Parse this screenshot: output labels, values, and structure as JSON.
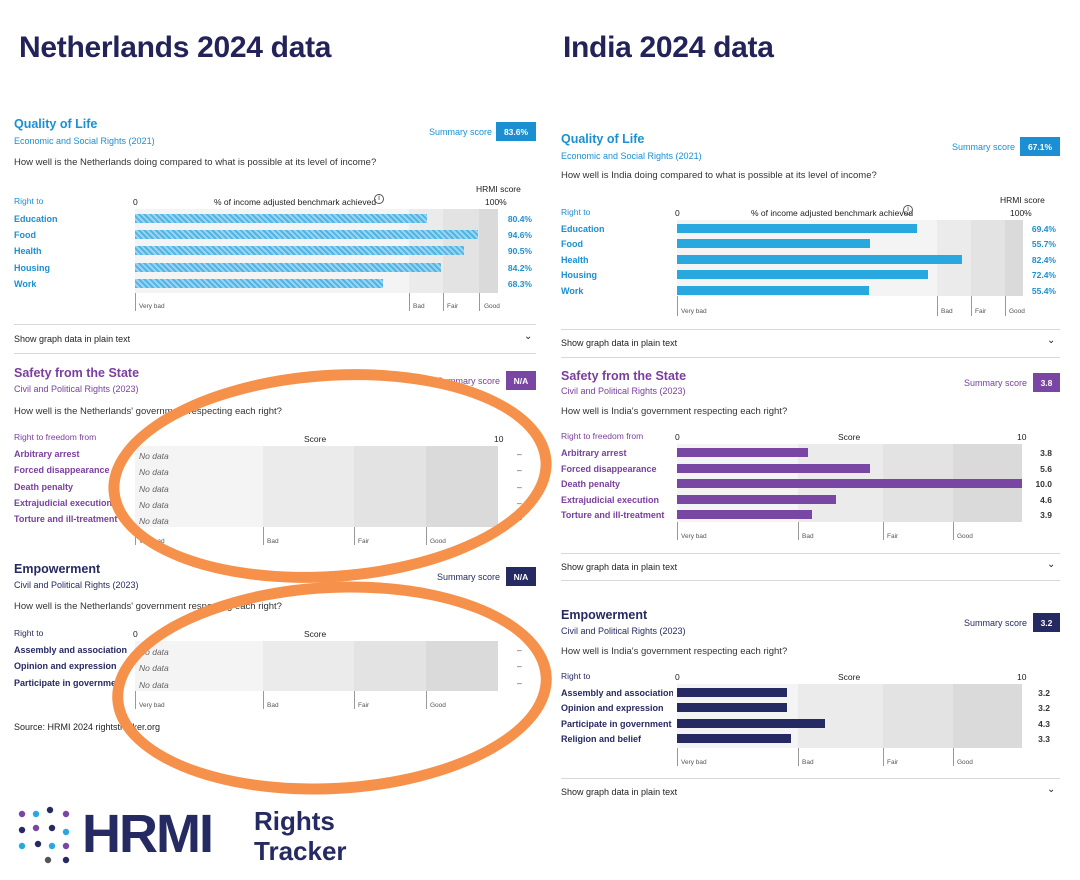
{
  "left": {
    "heading": "Netherlands 2024 data",
    "qol": {
      "title": "Quality of Life",
      "subtitle": "Economic and Social Rights (2021)",
      "summary_label": "Summary score",
      "summary_value": "83.6%",
      "question": "How well is the Netherlands doing compared to what is possible at its level of income?",
      "right_to": "Right to",
      "axis_start": "0",
      "axis_title": "% of income adjusted benchmark achieved",
      "info_icon": "info-icon",
      "axis_end": "100%",
      "hrmi_score": "HRMI score",
      "rows": [
        {
          "label": "Education",
          "display": "80.4%",
          "value": 80.4
        },
        {
          "label": "Food",
          "display": "94.6%",
          "value": 94.6
        },
        {
          "label": "Health",
          "display": "90.5%",
          "value": 90.5
        },
        {
          "label": "Housing",
          "display": "84.2%",
          "value": 84.2
        },
        {
          "label": "Work",
          "display": "68.3%",
          "value": 68.3
        }
      ],
      "bands": {
        "very_bad": "Very bad",
        "bad": "Bad",
        "fair": "Fair",
        "good": "Good"
      },
      "show_graph": "Show graph data in plain text"
    },
    "safety": {
      "title": "Safety from the State",
      "subtitle": "Civil and Political Rights (2023)",
      "summary_label": "Summary score",
      "summary_value": "N/A",
      "question": "How well is the Netherlands' government respecting each right?",
      "right_to": "Right to freedom from",
      "axis_title": "Score",
      "axis_end": "10",
      "rows": [
        {
          "label": "Arbitrary arrest",
          "nd": "No data",
          "value": "–"
        },
        {
          "label": "Forced disappearance",
          "nd": "No data",
          "value": "–"
        },
        {
          "label": "Death penalty",
          "nd": "No data",
          "value": "–"
        },
        {
          "label": "Extrajudicial execution",
          "nd": "No data",
          "value": "–"
        },
        {
          "label": "Torture and ill-treatment",
          "nd": "No data",
          "value": "–"
        }
      ],
      "bands": {
        "very_bad": "Very bad",
        "bad": "Bad",
        "fair": "Fair",
        "good": "Good"
      }
    },
    "emp": {
      "title": "Empowerment",
      "subtitle": "Civil and Political Rights (2023)",
      "summary_label": "Summary score",
      "summary_value": "N/A",
      "question": "How well is the Netherlands' government respecting each right?",
      "right_to": "Right to",
      "axis_start": "0",
      "axis_title": "Score",
      "rows": [
        {
          "label": "Assembly and association",
          "nd": "No data",
          "value": "–"
        },
        {
          "label": "Opinion and expression",
          "nd": "No data",
          "value": "–"
        },
        {
          "label": "Participate in government",
          "nd": "No data",
          "value": "–"
        }
      ],
      "bands": {
        "very_bad": "Very bad",
        "bad": "Bad",
        "fair": "Fair",
        "good": "Good"
      }
    },
    "source": "Source: HRMI 2024 rightstracker.org"
  },
  "right": {
    "heading": "India 2024 data",
    "qol": {
      "title": "Quality of Life",
      "subtitle": "Economic and Social Rights (2021)",
      "summary_label": "Summary score",
      "summary_value": "67.1%",
      "question": "How well is India doing compared to what is possible at its level of income?",
      "right_to": "Right to",
      "axis_start": "0",
      "axis_title": "% of income adjusted benchmark achieved",
      "info_icon": "info-icon",
      "axis_end": "100%",
      "hrmi_score": "HRMI score",
      "rows": [
        {
          "label": "Education",
          "display": "69.4%",
          "value": 69.4
        },
        {
          "label": "Food",
          "display": "55.7%",
          "value": 55.7
        },
        {
          "label": "Health",
          "display": "82.4%",
          "value": 82.4
        },
        {
          "label": "Housing",
          "display": "72.4%",
          "value": 72.4
        },
        {
          "label": "Work",
          "display": "55.4%",
          "value": 55.4
        }
      ],
      "bands": {
        "very_bad": "Very bad",
        "bad": "Bad",
        "fair": "Fair",
        "good": "Good"
      },
      "show_graph": "Show graph data in plain text"
    },
    "safety": {
      "title": "Safety from the State",
      "subtitle": "Civil and Political Rights (2023)",
      "summary_label": "Summary score",
      "summary_value": "3.8",
      "question": "How well is India's government respecting each right?",
      "right_to": "Right to freedom from",
      "axis_start": "0",
      "axis_title": "Score",
      "axis_end": "10",
      "rows": [
        {
          "label": "Arbitrary arrest",
          "display": "3.8",
          "value": 3.8
        },
        {
          "label": "Forced disappearance",
          "display": "5.6",
          "value": 5.6
        },
        {
          "label": "Death penalty",
          "display": "10.0",
          "value": 10.0
        },
        {
          "label": "Extrajudicial execution",
          "display": "4.6",
          "value": 4.6
        },
        {
          "label": "Torture and ill-treatment",
          "display": "3.9",
          "value": 3.9
        }
      ],
      "bands": {
        "very_bad": "Very bad",
        "bad": "Bad",
        "fair": "Fair",
        "good": "Good"
      },
      "show_graph": "Show graph data in plain text"
    },
    "emp": {
      "title": "Empowerment",
      "subtitle": "Civil and Political Rights (2023)",
      "summary_label": "Summary score",
      "summary_value": "3.2",
      "question": "How well is India's government respecting each right?",
      "right_to": "Right to",
      "axis_start": "0",
      "axis_title": "Score",
      "axis_end": "10",
      "rows": [
        {
          "label": "Assembly and association",
          "display": "3.2",
          "value": 3.2
        },
        {
          "label": "Opinion and expression",
          "display": "3.2",
          "value": 3.2
        },
        {
          "label": "Participate in government",
          "display": "4.3",
          "value": 4.3
        },
        {
          "label": "Religion and belief",
          "display": "3.3",
          "value": 3.3
        }
      ],
      "bands": {
        "very_bad": "Very bad",
        "bad": "Bad",
        "fair": "Fair",
        "good": "Good"
      },
      "show_graph": "Show graph data in plain text"
    }
  },
  "logo": {
    "brand": "HRMI",
    "line1": "Rights",
    "line2": "Tracker"
  },
  "colors": {
    "qol": "#1b8fd2",
    "safety": "#7a46a3",
    "emp": "#262a62",
    "highlight": "#f6914b",
    "heading": "#23235a"
  }
}
